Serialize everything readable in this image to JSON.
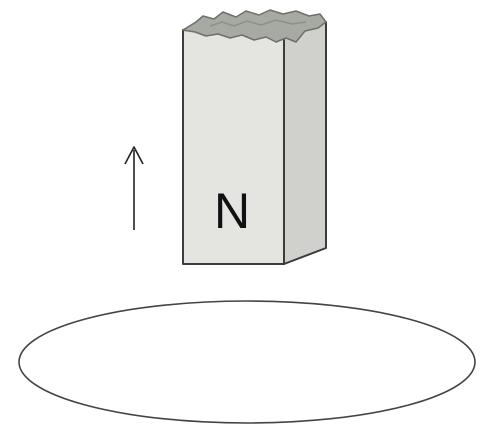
{
  "magnet": {
    "pole_label": "N",
    "colors": {
      "front_face": "#e4e4e1",
      "side_face": "#d0d0cc",
      "top_broken": "#a7a9a3",
      "outline": "#3c3c3c"
    }
  },
  "motion_arrow": {
    "direction": "up",
    "color": "#222222"
  },
  "coil": {
    "shape": "ellipse",
    "stroke_color": "#444444"
  }
}
